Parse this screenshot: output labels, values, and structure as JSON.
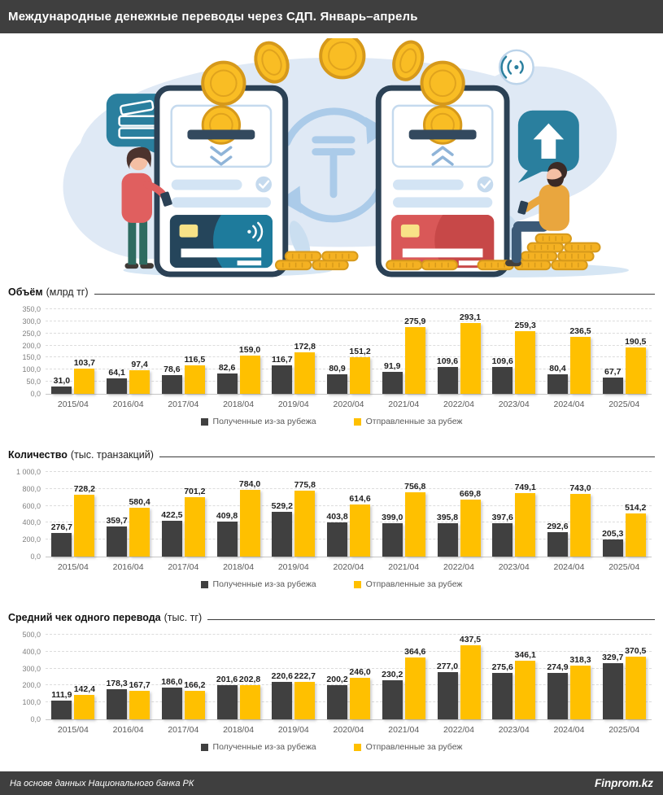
{
  "header": {
    "title": "Международные денежные переводы через СДП. Январь–апрель"
  },
  "illustration": {
    "description": "Две смартфона обмениваются денежными переводами в тенге: женщина отправляет, мужчина получает, золотые монеты",
    "icons": [
      "cash-speech-bubble-icon",
      "contactless-waves-icon",
      "tenge-exchange-icon",
      "send-arrow-bubble-icon",
      "coin-icon",
      "bank-card-icon",
      "checkmark-icon"
    ],
    "colors": {
      "blob": "#dfe9f5",
      "teal": "#2a7f9e",
      "coin_gold": "#f9bd24",
      "phone_frame": "#2b4155",
      "card_left": "#1e7b9c",
      "card_right": "#d95858"
    }
  },
  "colors": {
    "header_bg": "#3f3f3f",
    "bar_received": "#404040",
    "bar_sent": "#ffc000",
    "axis_text": "#7f7f7f",
    "category_text": "#595959"
  },
  "legend": {
    "received": "Полученные из-за рубежа",
    "sent": "Отправленные за рубеж"
  },
  "chart_data": [
    {
      "id": "volume",
      "type": "bar",
      "title": "Объём",
      "unit": "(млрд тг)",
      "ylim": [
        0,
        350
      ],
      "ystep": 50,
      "grid": "dashed-horizontal",
      "legend_position": "bottom-center",
      "categories": [
        "2015/04",
        "2016/04",
        "2017/04",
        "2018/04",
        "2019/04",
        "2020/04",
        "2021/04",
        "2022/04",
        "2023/04",
        "2024/04",
        "2025/04"
      ],
      "series": [
        {
          "name": "Полученные из-за рубежа",
          "color": "#404040",
          "values": [
            31.0,
            64.1,
            78.6,
            82.6,
            116.7,
            80.9,
            91.9,
            109.6,
            109.6,
            80.4,
            67.7
          ]
        },
        {
          "name": "Отправленные за рубеж",
          "color": "#ffc000",
          "values": [
            103.7,
            97.4,
            116.5,
            159.0,
            172.8,
            151.2,
            275.9,
            293.1,
            259.3,
            236.5,
            190.5
          ]
        }
      ]
    },
    {
      "id": "count",
      "type": "bar",
      "title": "Количество",
      "unit": "(тыс. транзакций)",
      "ylim": [
        0,
        1000
      ],
      "ystep": 200,
      "grid": "dashed-horizontal",
      "legend_position": "bottom-center",
      "categories": [
        "2015/04",
        "2016/04",
        "2017/04",
        "2018/04",
        "2019/04",
        "2020/04",
        "2021/04",
        "2022/04",
        "2023/04",
        "2024/04",
        "2025/04"
      ],
      "series": [
        {
          "name": "Полученные из-за рубежа",
          "color": "#404040",
          "values": [
            276.7,
            359.7,
            422.5,
            409.8,
            529.2,
            403.8,
            399.0,
            395.8,
            397.6,
            292.6,
            205.3
          ]
        },
        {
          "name": "Отправленные за рубеж",
          "color": "#ffc000",
          "values": [
            728.2,
            580.4,
            701.2,
            784.0,
            775.8,
            614.6,
            756.8,
            669.8,
            749.1,
            743.0,
            514.2
          ]
        }
      ]
    },
    {
      "id": "avg-check",
      "type": "bar",
      "title": "Средний чек одного перевода",
      "unit": "(тыс. тг)",
      "ylim": [
        0,
        500
      ],
      "ystep": 100,
      "grid": "dashed-horizontal",
      "legend_position": "bottom-center",
      "categories": [
        "2015/04",
        "2016/04",
        "2017/04",
        "2018/04",
        "2019/04",
        "2020/04",
        "2021/04",
        "2022/04",
        "2023/04",
        "2024/04",
        "2025/04"
      ],
      "series": [
        {
          "name": "Полученные из-за рубежа",
          "color": "#404040",
          "values": [
            111.9,
            178.3,
            186.0,
            201.6,
            220.6,
            200.2,
            230.2,
            277.0,
            275.6,
            274.9,
            329.7
          ]
        },
        {
          "name": "Отправленные за рубеж",
          "color": "#ffc000",
          "values": [
            142.4,
            167.7,
            166.2,
            202.8,
            222.7,
            246.0,
            364.6,
            437.5,
            346.1,
            318.3,
            370.5
          ]
        }
      ]
    }
  ],
  "footer": {
    "source": "На основе данных Национального банка РК",
    "brand": "Finprom.kz"
  }
}
